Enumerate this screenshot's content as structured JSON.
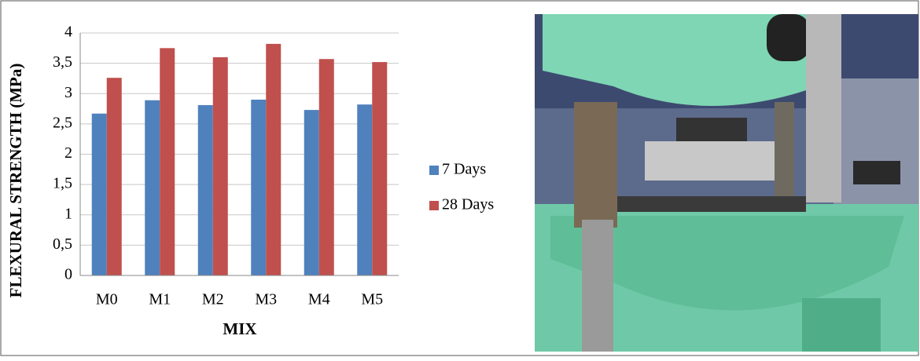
{
  "chart_data": {
    "type": "bar",
    "x_label": "MIX",
    "y_label": "FLEXURAL STRENGTH (MPa)",
    "categories": [
      "M0",
      "M1",
      "M2",
      "M3",
      "M4",
      "M5"
    ],
    "series": [
      {
        "name": "7 Days",
        "color": "#4f81bd",
        "values": [
          2.67,
          2.89,
          2.81,
          2.9,
          2.73,
          2.82
        ]
      },
      {
        "name": "28 Days",
        "color": "#c0504d",
        "values": [
          3.26,
          3.75,
          3.6,
          3.82,
          3.57,
          3.52
        ]
      }
    ],
    "ylim": [
      0,
      4
    ],
    "yticks": [
      0,
      {
        "value": 0.5,
        "label": "0,5"
      },
      1,
      {
        "value": 1.5,
        "label": "1,5"
      },
      2,
      {
        "value": 2.5,
        "label": "2,5"
      },
      3,
      {
        "value": 3.5,
        "label": "3,5"
      },
      4
    ],
    "grid": true,
    "legend": "right"
  }
}
